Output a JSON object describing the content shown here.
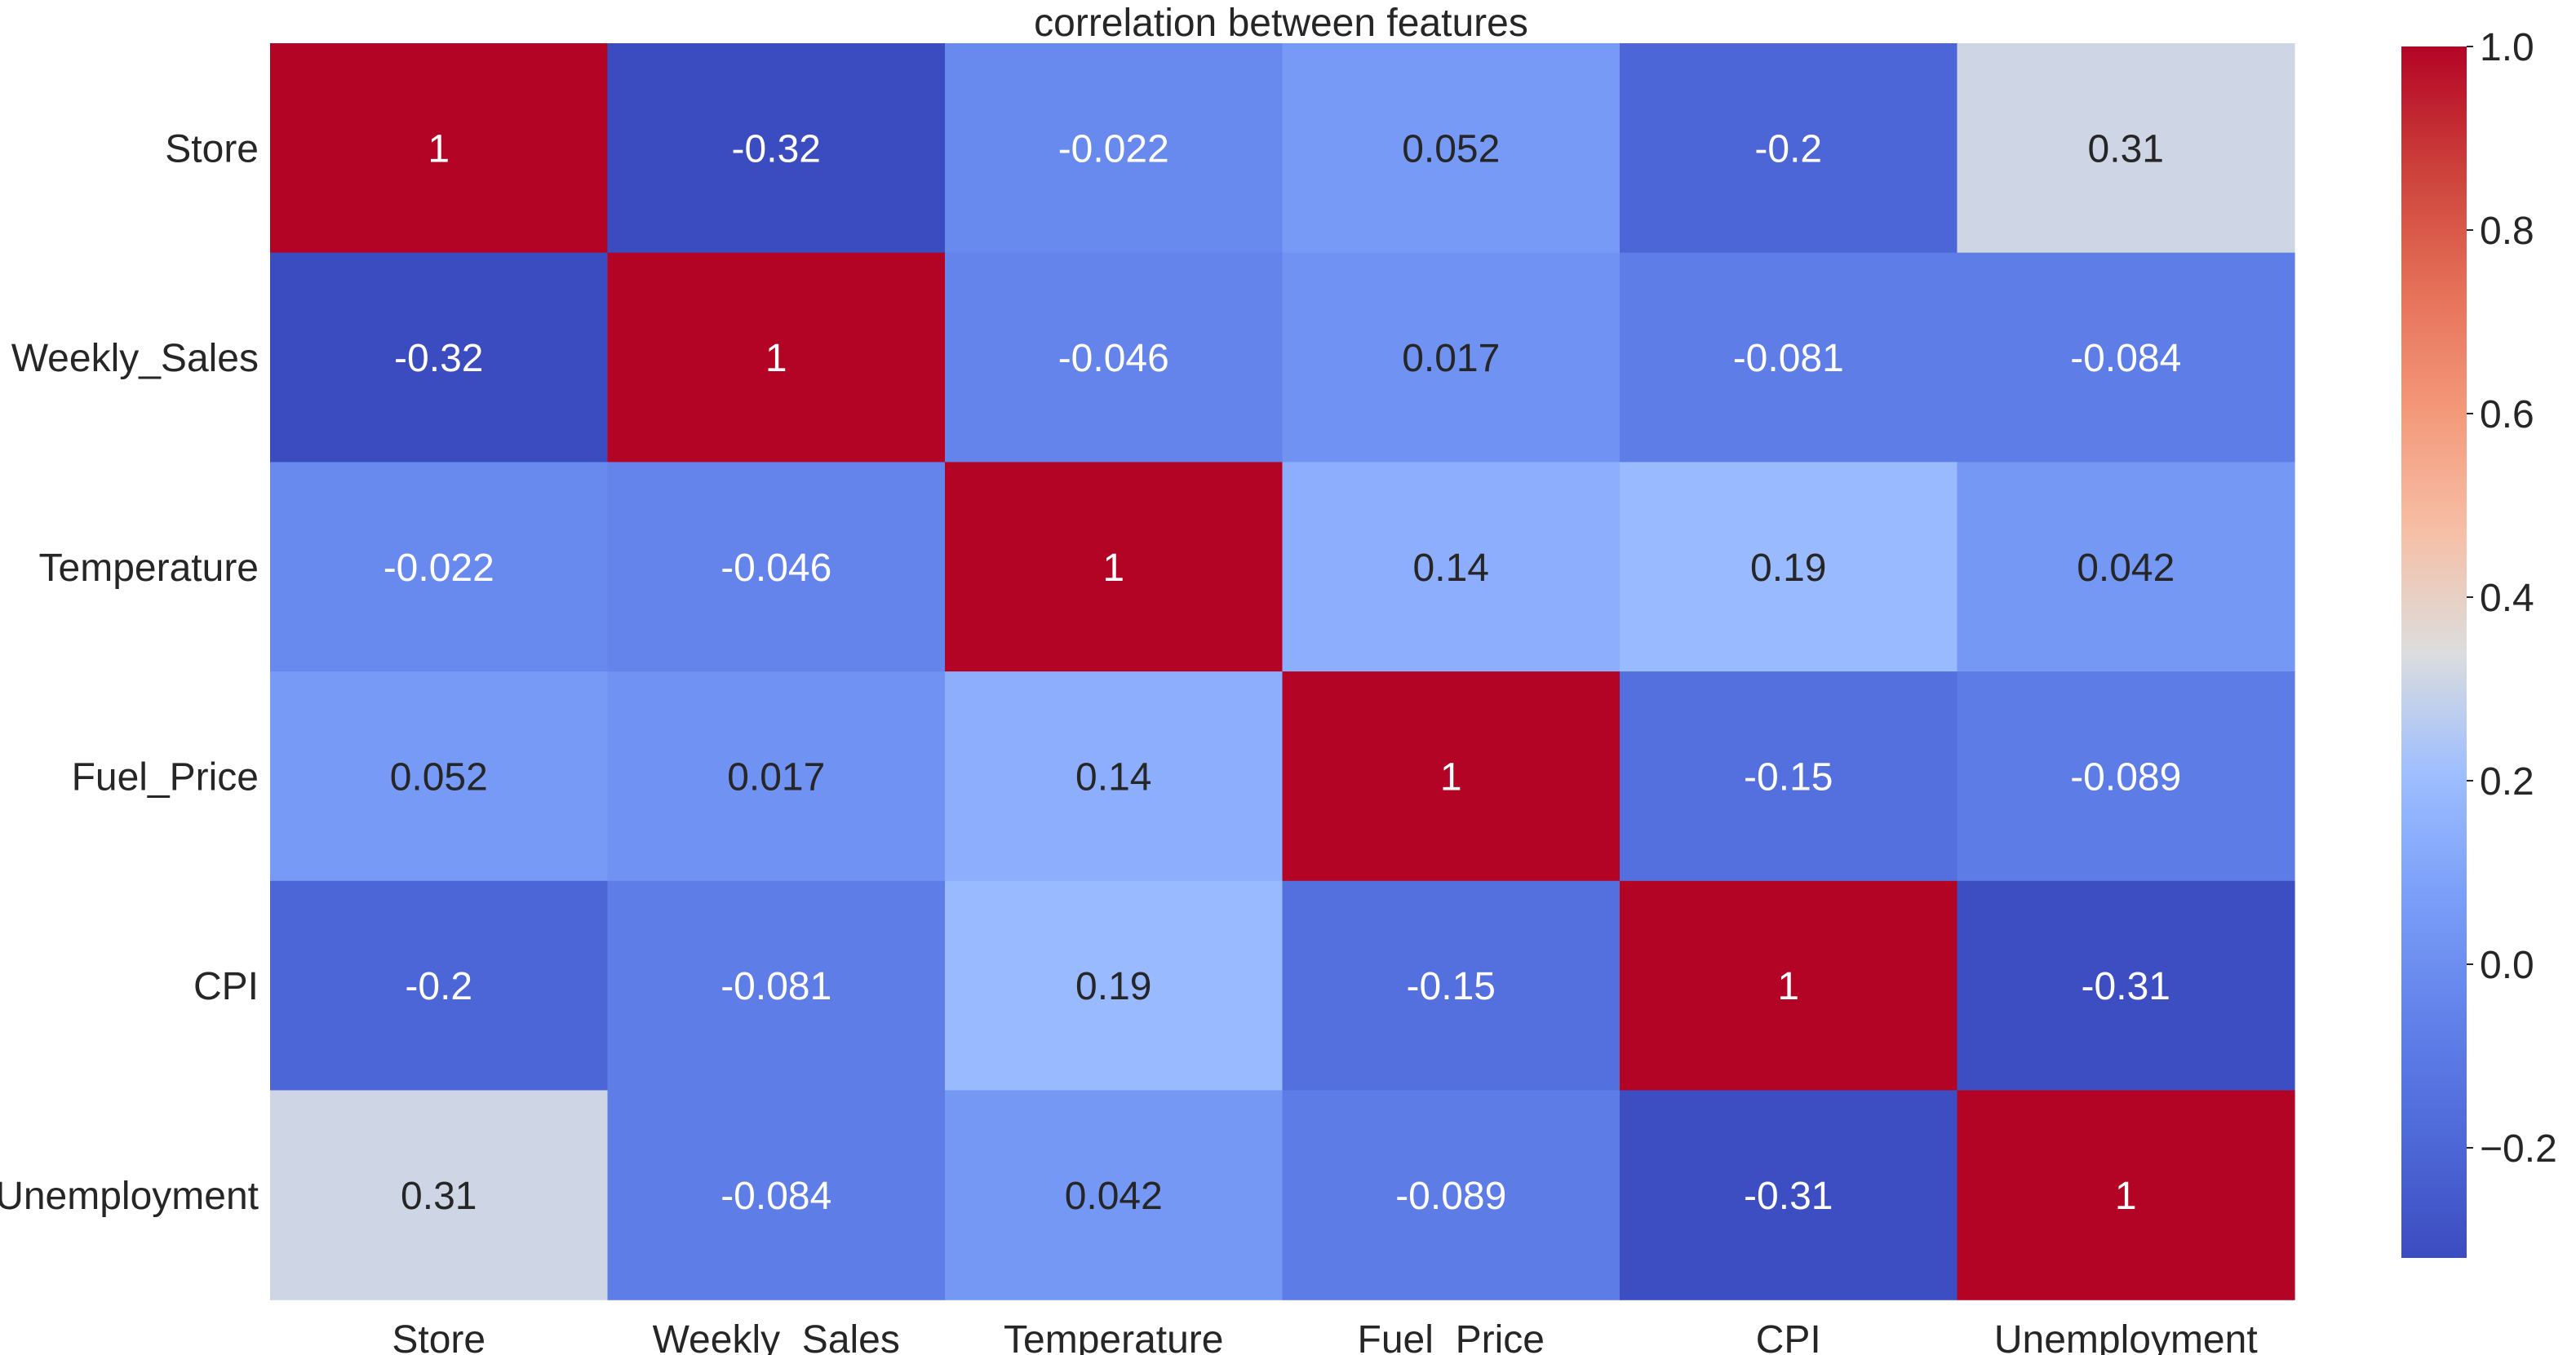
{
  "chart_data": {
    "type": "heatmap",
    "title": "correlation between features",
    "xlabel": "",
    "ylabel": "",
    "x_categories": [
      "Store",
      "Weekly_Sales",
      "Temperature",
      "Fuel_Price",
      "CPI",
      "Unemployment"
    ],
    "y_categories": [
      "Store",
      "Weekly_Sales",
      "Temperature",
      "Fuel_Price",
      "CPI",
      "Unemployment"
    ],
    "values": [
      [
        1,
        -0.32,
        -0.022,
        0.052,
        -0.2,
        0.31
      ],
      [
        -0.32,
        1,
        -0.046,
        0.017,
        -0.081,
        -0.084
      ],
      [
        -0.022,
        -0.046,
        1,
        0.14,
        0.19,
        0.042
      ],
      [
        0.052,
        0.017,
        0.14,
        1,
        -0.15,
        -0.089
      ],
      [
        -0.2,
        -0.081,
        0.19,
        -0.15,
        1,
        -0.31
      ],
      [
        0.31,
        -0.084,
        0.042,
        -0.089,
        -0.31,
        1
      ]
    ],
    "value_labels": [
      [
        "1",
        "-0.32",
        "-0.022",
        "0.052",
        "-0.2",
        "0.31"
      ],
      [
        "-0.32",
        "1",
        "-0.046",
        "0.017",
        "-0.081",
        "-0.084"
      ],
      [
        "-0.022",
        "-0.046",
        "1",
        "0.14",
        "0.19",
        "0.042"
      ],
      [
        "0.052",
        "0.017",
        "0.14",
        "1",
        "-0.15",
        "-0.089"
      ],
      [
        "-0.2",
        "-0.081",
        "0.19",
        "-0.15",
        "1",
        "-0.31"
      ],
      [
        "0.31",
        "-0.084",
        "0.042",
        "-0.089",
        "-0.31",
        "1"
      ]
    ],
    "colormap": "coolwarm",
    "color_range": [
      -0.32,
      1.0
    ],
    "colorbar": {
      "ticks": [
        -0.2,
        0.0,
        0.2,
        0.4,
        0.6,
        0.8,
        1.0
      ],
      "tick_labels": [
        "−0.2",
        "0.0",
        "0.2",
        "0.4",
        "0.6",
        "0.8",
        "1.0"
      ]
    },
    "colorbar_placement": "right",
    "grid": false
  }
}
